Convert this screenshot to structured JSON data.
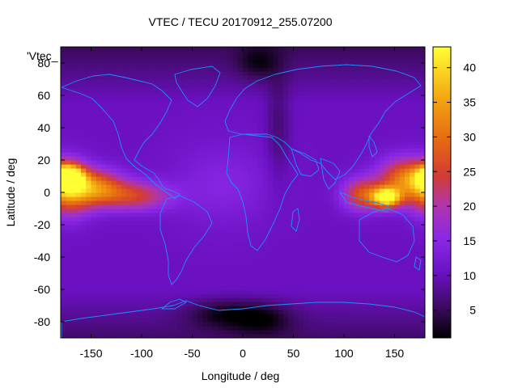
{
  "chart_data": {
    "type": "heatmap",
    "title": "VTEC / TECU 20170912_255.07200",
    "xlabel": "Longitude / deg",
    "ylabel": "Latitude / deg",
    "series_label": "'Vtec_",
    "xlim": [
      -180,
      180
    ],
    "ylim": [
      -90,
      90
    ],
    "x_ticks": [
      -150,
      -100,
      -50,
      0,
      50,
      100,
      150
    ],
    "y_ticks": [
      -80,
      -60,
      -40,
      -20,
      0,
      20,
      40,
      60,
      80
    ],
    "colorbar": {
      "range": [
        1,
        43
      ],
      "ticks": [
        5,
        10,
        15,
        20,
        25,
        30,
        35,
        40
      ],
      "palette": "black-purple-red-orange-yellow"
    },
    "grid": false,
    "coastlines": true,
    "hotspots": [
      {
        "lon": -170,
        "lat": 10,
        "peak_tecu": 42
      },
      {
        "lon": 140,
        "lat": -3,
        "peak_tecu": 40
      }
    ]
  }
}
